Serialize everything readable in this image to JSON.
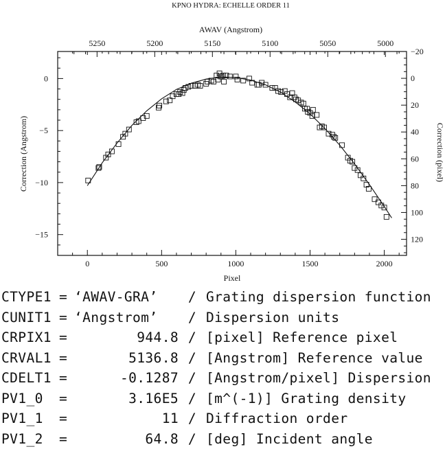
{
  "chart_data": {
    "type": "scatter",
    "title": "KPNO HYDRA: ECHELLE ORDER 11",
    "xlabel": "Pixel",
    "ylabel": "Correction (Angstrom)",
    "top_xlabel": "AWAV (Angstrom)",
    "right_ylabel": "Correction (pixel)",
    "xlim": [
      -200,
      2150
    ],
    "ylim": [
      -17,
      2.6
    ],
    "right_ylim": [
      132,
      -20
    ],
    "x_ticks": [
      0,
      500,
      1000,
      1500,
      2000
    ],
    "y_ticks": [
      0,
      -5,
      -10,
      -15
    ],
    "top_ticks": [
      5250,
      5200,
      5150,
      5100,
      5050,
      5000
    ],
    "right_ticks": [
      -20,
      0,
      20,
      40,
      60,
      80,
      100,
      120
    ],
    "grid": false,
    "series": [
      {
        "marker": "open-square",
        "points": [
          [
            5,
            -9.8
          ],
          [
            75,
            -8.6
          ],
          [
            80,
            -8.5
          ],
          [
            125,
            -7.6
          ],
          [
            140,
            -7.3
          ],
          [
            165,
            -7.0
          ],
          [
            210,
            -6.3
          ],
          [
            240,
            -5.6
          ],
          [
            255,
            -5.3
          ],
          [
            280,
            -4.9
          ],
          [
            330,
            -4.2
          ],
          [
            345,
            -4.1
          ],
          [
            375,
            -3.8
          ],
          [
            400,
            -3.6
          ],
          [
            480,
            -2.8
          ],
          [
            485,
            -2.6
          ],
          [
            530,
            -2.2
          ],
          [
            555,
            -2.1
          ],
          [
            575,
            -1.7
          ],
          [
            600,
            -1.5
          ],
          [
            615,
            -1.5
          ],
          [
            625,
            -1.3
          ],
          [
            640,
            -1.4
          ],
          [
            650,
            -1.1
          ],
          [
            660,
            -0.9
          ],
          [
            680,
            -0.8
          ],
          [
            700,
            -0.7
          ],
          [
            725,
            -0.7
          ],
          [
            745,
            -0.6
          ],
          [
            760,
            -0.7
          ],
          [
            800,
            -0.5
          ],
          [
            810,
            -0.3
          ],
          [
            835,
            -0.2
          ],
          [
            850,
            -0.3
          ],
          [
            870,
            0.3
          ],
          [
            880,
            -0.1
          ],
          [
            890,
            0.5
          ],
          [
            895,
            0.2
          ],
          [
            905,
            0.2
          ],
          [
            915,
            0.3
          ],
          [
            920,
            -0.3
          ],
          [
            935,
            0.3
          ],
          [
            960,
            0.2
          ],
          [
            1000,
            0.2
          ],
          [
            1010,
            -0.1
          ],
          [
            1050,
            -0.2
          ],
          [
            1090,
            0.0
          ],
          [
            1110,
            -0.4
          ],
          [
            1145,
            -0.6
          ],
          [
            1155,
            -0.6
          ],
          [
            1175,
            -0.4
          ],
          [
            1200,
            -0.6
          ],
          [
            1245,
            -0.9
          ],
          [
            1265,
            -0.9
          ],
          [
            1285,
            -1.2
          ],
          [
            1305,
            -1.3
          ],
          [
            1330,
            -1.2
          ],
          [
            1345,
            -1.5
          ],
          [
            1365,
            -1.8
          ],
          [
            1380,
            -1.4
          ],
          [
            1395,
            -1.8
          ],
          [
            1405,
            -2.0
          ],
          [
            1420,
            -2.1
          ],
          [
            1440,
            -2.3
          ],
          [
            1455,
            -2.4
          ],
          [
            1465,
            -2.9
          ],
          [
            1480,
            -2.9
          ],
          [
            1485,
            -3.2
          ],
          [
            1500,
            -3.3
          ],
          [
            1515,
            -3.6
          ],
          [
            1520,
            -3.0
          ],
          [
            1545,
            -3.5
          ],
          [
            1565,
            -4.7
          ],
          [
            1580,
            -4.6
          ],
          [
            1595,
            -4.7
          ],
          [
            1625,
            -5.3
          ],
          [
            1650,
            -5.4
          ],
          [
            1660,
            -5.6
          ],
          [
            1670,
            -5.7
          ],
          [
            1715,
            -6.4
          ],
          [
            1755,
            -7.6
          ],
          [
            1770,
            -7.9
          ],
          [
            1785,
            -8.0
          ],
          [
            1800,
            -8.6
          ],
          [
            1820,
            -8.8
          ],
          [
            1840,
            -9.3
          ],
          [
            1860,
            -9.6
          ],
          [
            1880,
            -10.2
          ],
          [
            1895,
            -10.6
          ],
          [
            1935,
            -11.6
          ],
          [
            1960,
            -11.9
          ],
          [
            1980,
            -12.2
          ],
          [
            2000,
            -12.4
          ],
          [
            2015,
            -13.3
          ]
        ]
      }
    ],
    "fit_curve": {
      "x": [
        0,
        100,
        200,
        300,
        400,
        500,
        600,
        700,
        800,
        900,
        1000,
        1100,
        1200,
        1300,
        1400,
        1500,
        1600,
        1700,
        1800,
        1900,
        2000,
        2050
      ],
      "y": [
        -10.3,
        -8.1,
        -6.2,
        -4.5,
        -3.1,
        -1.95,
        -1.05,
        -0.45,
        -0.05,
        0.15,
        0.1,
        -0.15,
        -0.6,
        -1.3,
        -2.25,
        -3.4,
        -4.8,
        -6.4,
        -8.2,
        -10.2,
        -12.3,
        -13.4
      ]
    }
  },
  "fits_header": [
    {
      "keyword": "CTYPE1",
      "eq": "=",
      "value": "'AWAV-GRA'",
      "sep": "/",
      "comment": "Grating dispersion function",
      "string": true
    },
    {
      "keyword": "CUNIT1",
      "eq": "=",
      "value": "'Angstrom'",
      "sep": "/",
      "comment": "Dispersion units",
      "string": true
    },
    {
      "keyword": "CRPIX1",
      "eq": "=",
      "value": "944.8",
      "sep": "/",
      "comment": "[pixel] Reference pixel",
      "string": false
    },
    {
      "keyword": "CRVAL1",
      "eq": "=",
      "value": "5136.8",
      "sep": "/",
      "comment": "[Angstrom] Reference value",
      "string": false
    },
    {
      "keyword": "CDELT1",
      "eq": "=",
      "value": "-0.1287",
      "sep": "/",
      "comment": "[Angstrom/pixel] Dispersion",
      "string": false
    },
    {
      "keyword": "PV1_0",
      "eq": "=",
      "value": "3.16E5",
      "sep": "/",
      "comment": "[m^(-1)] Grating density",
      "string": false
    },
    {
      "keyword": "PV1_1",
      "eq": "=",
      "value": "11",
      "sep": "/",
      "comment": "Diffraction order",
      "string": false
    },
    {
      "keyword": "PV1_2",
      "eq": "=",
      "value": "64.8",
      "sep": "/",
      "comment": "[deg] Incident angle",
      "string": false
    }
  ]
}
